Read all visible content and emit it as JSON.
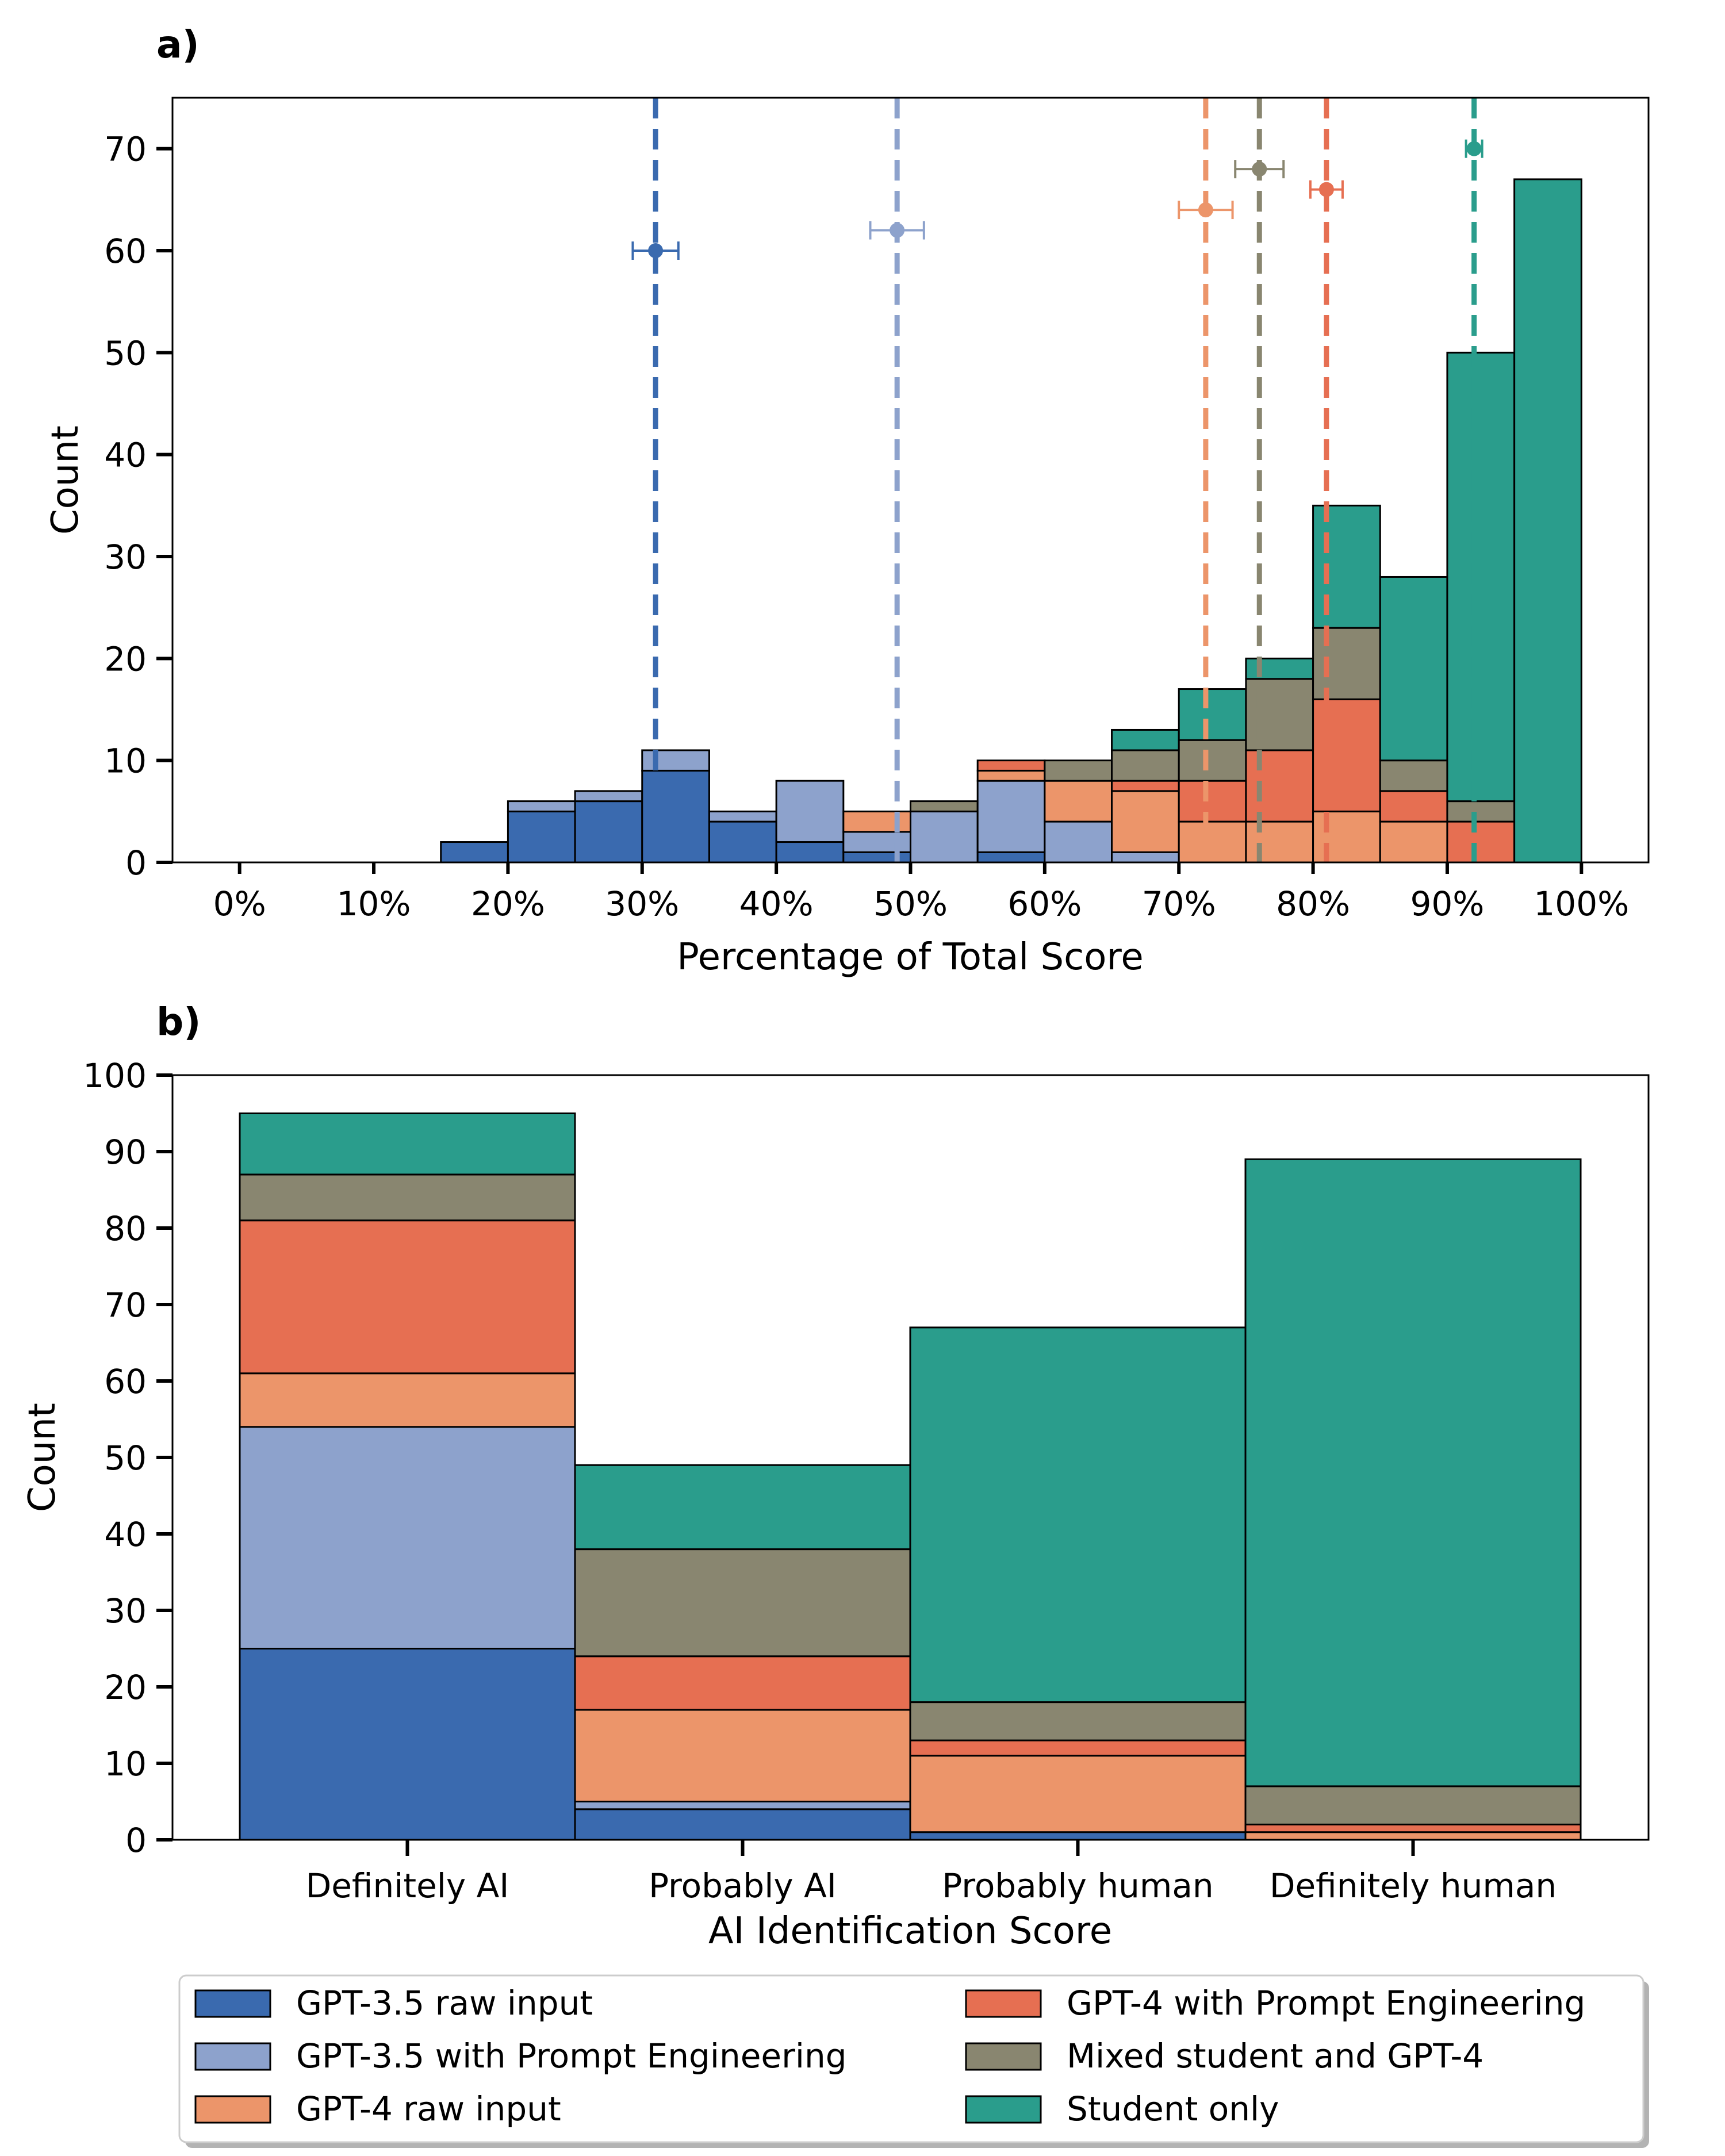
{
  "colors": {
    "gpt35_raw": "#3a6aaf",
    "gpt35_pe": "#8da2cc",
    "gpt4_raw": "#ec956a",
    "gpt4_pe": "#e66f52",
    "mixed": "#898670",
    "student": "#2a9d8c"
  },
  "legend": [
    {
      "key": "gpt35_raw",
      "label": "GPT-3.5 raw input"
    },
    {
      "key": "gpt35_pe",
      "label": "GPT-3.5 with Prompt Engineering"
    },
    {
      "key": "gpt4_raw",
      "label": "GPT-4 raw input"
    },
    {
      "key": "gpt4_pe",
      "label": "GPT-4 with Prompt Engineering"
    },
    {
      "key": "mixed",
      "label": "Mixed student and GPT-4"
    },
    {
      "key": "student",
      "label": "Student only"
    }
  ],
  "chart_data": [
    {
      "panel": "a)",
      "type": "bar",
      "subtype": "stacked-histogram",
      "xlabel": "Percentage of Total Score",
      "ylabel": "Count",
      "xlim": [
        -0.05,
        1.05
      ],
      "ylim": [
        0,
        75
      ],
      "xticks": [
        0,
        0.1,
        0.2,
        0.3,
        0.4,
        0.5,
        0.6,
        0.7,
        0.8,
        0.9,
        1.0
      ],
      "xtick_labels": [
        "0%",
        "10%",
        "20%",
        "30%",
        "40%",
        "50%",
        "60%",
        "70%",
        "80%",
        "90%",
        "100%"
      ],
      "yticks": [
        0,
        10,
        20,
        30,
        40,
        50,
        60,
        70
      ],
      "bin_edges": [
        0.0,
        0.05,
        0.1,
        0.15,
        0.2,
        0.25,
        0.3,
        0.35,
        0.4,
        0.45,
        0.5,
        0.55,
        0.6,
        0.65,
        0.7,
        0.75,
        0.8,
        0.85,
        0.9,
        0.95,
        1.0
      ],
      "series": [
        {
          "key": "gpt35_raw",
          "name": "GPT-3.5 raw input",
          "values": [
            0,
            0,
            0,
            2,
            5,
            6,
            9,
            4,
            2,
            1,
            0,
            1,
            0,
            0,
            0,
            0,
            0,
            0,
            0,
            0
          ]
        },
        {
          "key": "gpt35_pe",
          "name": "GPT-3.5 with Prompt Engineering",
          "values": [
            0,
            0,
            0,
            0,
            1,
            1,
            2,
            1,
            6,
            2,
            5,
            7,
            4,
            1,
            0,
            0,
            0,
            0,
            0,
            0
          ]
        },
        {
          "key": "gpt4_raw",
          "name": "GPT-4 raw input",
          "values": [
            0,
            0,
            0,
            0,
            0,
            0,
            0,
            0,
            0,
            2,
            0,
            1,
            4,
            6,
            4,
            4,
            5,
            4,
            0,
            0
          ]
        },
        {
          "key": "gpt4_pe",
          "name": "GPT-4 with Prompt Engineering",
          "values": [
            0,
            0,
            0,
            0,
            0,
            0,
            0,
            0,
            0,
            0,
            0,
            1,
            0,
            1,
            4,
            7,
            11,
            3,
            4,
            0
          ]
        },
        {
          "key": "mixed",
          "name": "Mixed student and GPT-4",
          "values": [
            0,
            0,
            0,
            0,
            0,
            0,
            0,
            0,
            0,
            0,
            1,
            0,
            2,
            3,
            4,
            7,
            7,
            3,
            2,
            0
          ]
        },
        {
          "key": "student",
          "name": "Student only",
          "values": [
            0,
            0,
            0,
            0,
            0,
            0,
            0,
            0,
            0,
            0,
            0,
            0,
            0,
            2,
            5,
            2,
            12,
            18,
            44,
            67
          ]
        }
      ],
      "mean_markers": [
        {
          "key": "gpt35_raw",
          "x": 0.31,
          "y": 60,
          "xerr": 0.017
        },
        {
          "key": "gpt35_pe",
          "x": 0.49,
          "y": 62,
          "xerr": 0.02
        },
        {
          "key": "gpt4_raw",
          "x": 0.72,
          "y": 64,
          "xerr": 0.02
        },
        {
          "key": "mixed",
          "x": 0.76,
          "y": 68,
          "xerr": 0.018
        },
        {
          "key": "gpt4_pe",
          "x": 0.81,
          "y": 66,
          "xerr": 0.012
        },
        {
          "key": "student",
          "x": 0.92,
          "y": 70,
          "xerr": 0.006
        }
      ]
    },
    {
      "panel": "b)",
      "type": "bar",
      "subtype": "stacked",
      "xlabel": "AI Identification Score",
      "ylabel": "Count",
      "ylim": [
        0,
        100
      ],
      "yticks": [
        0,
        10,
        20,
        30,
        40,
        50,
        60,
        70,
        80,
        90,
        100
      ],
      "categories": [
        "Definitely AI",
        "Probably AI",
        "Probably human",
        "Definitely human"
      ],
      "series": [
        {
          "key": "gpt35_raw",
          "name": "GPT-3.5 raw input",
          "values": [
            25,
            4,
            1,
            0
          ]
        },
        {
          "key": "gpt35_pe",
          "name": "GPT-3.5 with Prompt Engineering",
          "values": [
            29,
            1,
            0,
            0
          ]
        },
        {
          "key": "gpt4_raw",
          "name": "GPT-4 raw input",
          "values": [
            7,
            12,
            10,
            1
          ]
        },
        {
          "key": "gpt4_pe",
          "name": "GPT-4 with Prompt Engineering",
          "values": [
            20,
            7,
            2,
            1
          ]
        },
        {
          "key": "mixed",
          "name": "Mixed student and GPT-4",
          "values": [
            6,
            14,
            5,
            5
          ]
        },
        {
          "key": "student",
          "name": "Student only",
          "values": [
            8,
            11,
            49,
            82
          ]
        }
      ]
    }
  ]
}
